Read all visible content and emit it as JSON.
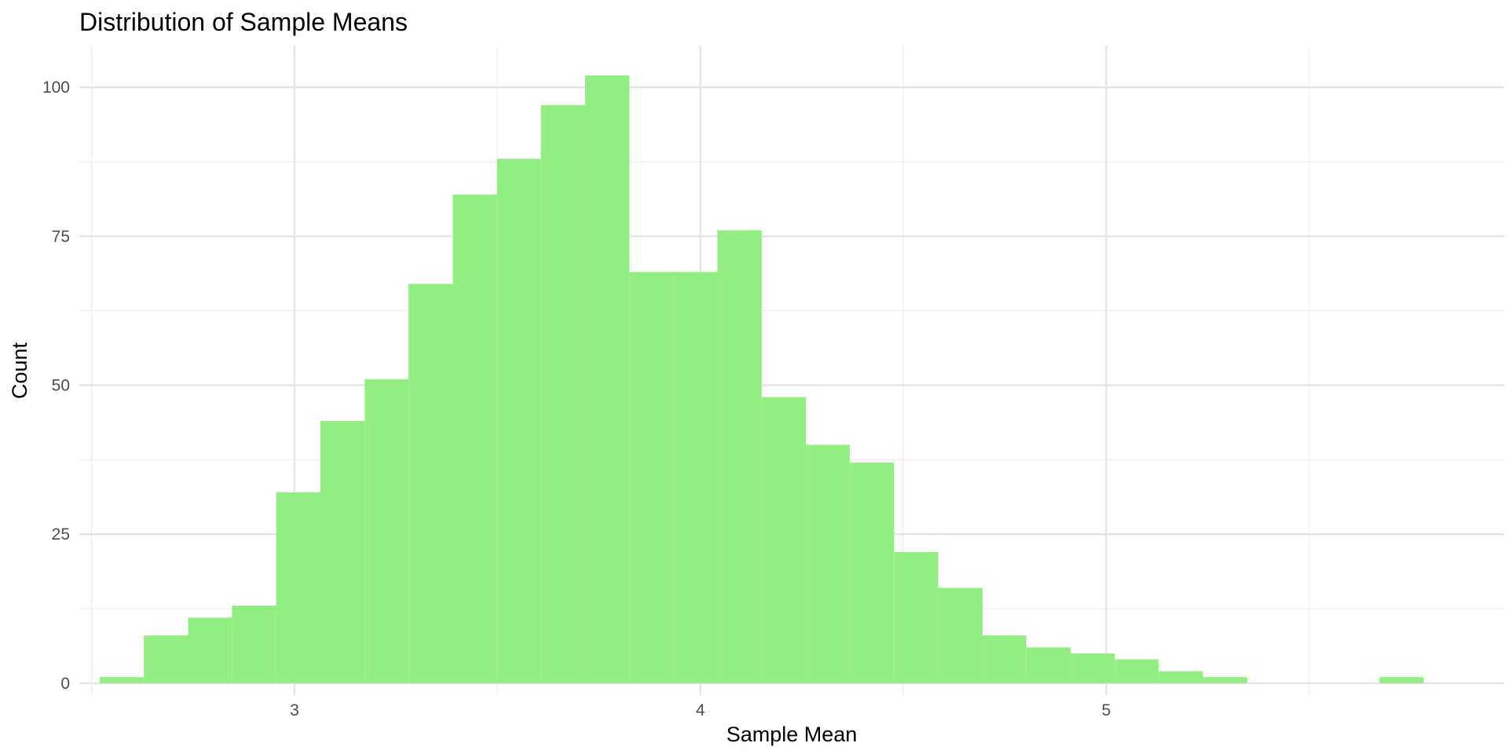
{
  "chart_data": {
    "type": "bar",
    "title": "Distribution of Sample Means",
    "xlabel": "Sample Mean",
    "ylabel": "Count",
    "xlim": [
      2.47,
      5.98
    ],
    "ylim": [
      -2,
      107
    ],
    "x_ticks": [
      3,
      4,
      5
    ],
    "x_tick_labels": [
      "3",
      "4",
      "5"
    ],
    "y_ticks": [
      0,
      25,
      50,
      75,
      100
    ],
    "y_tick_labels": [
      "0",
      "25",
      "50",
      "75",
      "100"
    ],
    "grid": true,
    "bar_color": "#90ee7f",
    "bin_width": 0.1087,
    "bins": [
      {
        "x0": 2.52,
        "x1": 2.629,
        "count": 1
      },
      {
        "x0": 2.629,
        "x1": 2.738,
        "count": 8
      },
      {
        "x0": 2.738,
        "x1": 2.846,
        "count": 11
      },
      {
        "x0": 2.846,
        "x1": 2.955,
        "count": 13
      },
      {
        "x0": 2.955,
        "x1": 3.064,
        "count": 32
      },
      {
        "x0": 3.064,
        "x1": 3.173,
        "count": 44
      },
      {
        "x0": 3.173,
        "x1": 3.281,
        "count": 51
      },
      {
        "x0": 3.281,
        "x1": 3.39,
        "count": 67
      },
      {
        "x0": 3.39,
        "x1": 3.499,
        "count": 82
      },
      {
        "x0": 3.499,
        "x1": 3.607,
        "count": 88
      },
      {
        "x0": 3.607,
        "x1": 3.716,
        "count": 97
      },
      {
        "x0": 3.716,
        "x1": 3.825,
        "count": 102
      },
      {
        "x0": 3.825,
        "x1": 3.934,
        "count": 69
      },
      {
        "x0": 3.934,
        "x1": 4.042,
        "count": 69
      },
      {
        "x0": 4.042,
        "x1": 4.151,
        "count": 76
      },
      {
        "x0": 4.151,
        "x1": 4.26,
        "count": 48
      },
      {
        "x0": 4.26,
        "x1": 4.368,
        "count": 40
      },
      {
        "x0": 4.368,
        "x1": 4.477,
        "count": 37
      },
      {
        "x0": 4.477,
        "x1": 4.586,
        "count": 22
      },
      {
        "x0": 4.586,
        "x1": 4.695,
        "count": 16
      },
      {
        "x0": 4.695,
        "x1": 4.803,
        "count": 8
      },
      {
        "x0": 4.803,
        "x1": 4.912,
        "count": 6
      },
      {
        "x0": 4.912,
        "x1": 5.021,
        "count": 5
      },
      {
        "x0": 5.021,
        "x1": 5.129,
        "count": 4
      },
      {
        "x0": 5.129,
        "x1": 5.238,
        "count": 2
      },
      {
        "x0": 5.238,
        "x1": 5.347,
        "count": 1
      },
      {
        "x0": 5.347,
        "x1": 5.456,
        "count": 0
      },
      {
        "x0": 5.456,
        "x1": 5.564,
        "count": 0
      },
      {
        "x0": 5.564,
        "x1": 5.673,
        "count": 0
      },
      {
        "x0": 5.673,
        "x1": 5.782,
        "count": 1
      }
    ]
  }
}
